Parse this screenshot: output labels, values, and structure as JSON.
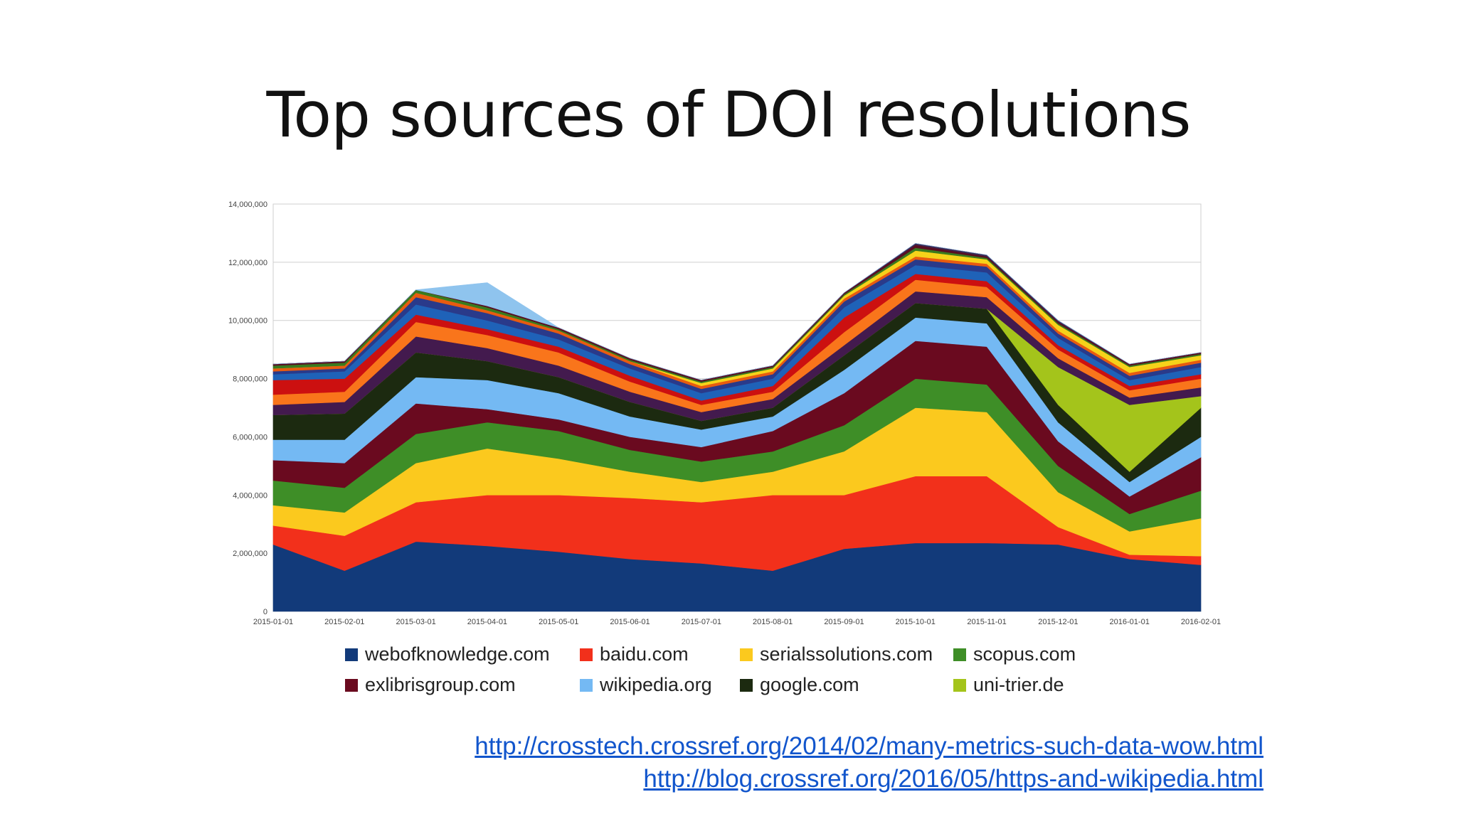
{
  "slide": {
    "title": "Top sources of DOI resolutions",
    "links": [
      "http://crosstech.crossref.org/2014/02/many-metrics-such-data-wow.html",
      "http://blog.crossref.org/2016/05/https-and-wikipedia.html"
    ]
  },
  "chart_data": {
    "type": "area",
    "stacked": true,
    "grid": true,
    "legend_position": "bottom",
    "ylim": [
      0,
      14000000
    ],
    "y_ticks": [
      "0",
      "2,000,000",
      "4,000,000",
      "6,000,000",
      "8,000,000",
      "10,000,000",
      "12,000,000",
      "14,000,000"
    ],
    "categories": [
      "2015-01-01",
      "2015-02-01",
      "2015-03-01",
      "2015-04-01",
      "2015-05-01",
      "2015-06-01",
      "2015-07-01",
      "2015-08-01",
      "2015-09-01",
      "2015-10-01",
      "2015-11-01",
      "2015-12-01",
      "2016-01-01",
      "2016-02-01"
    ],
    "series": [
      {
        "name": "webofknowledge.com",
        "color": "#123a7a",
        "legend": true,
        "values": [
          2300000,
          1400000,
          2400000,
          2250000,
          2050000,
          1800000,
          1650000,
          1400000,
          2150000,
          2350000,
          2350000,
          2300000,
          1800000,
          1600000
        ]
      },
      {
        "name": "baidu.com",
        "color": "#f2301b",
        "legend": true,
        "values": [
          650000,
          1200000,
          1350000,
          1750000,
          1950000,
          2100000,
          2100000,
          2600000,
          1850000,
          2300000,
          2300000,
          600000,
          150000,
          300000
        ]
      },
      {
        "name": "serialssolutions.com",
        "color": "#fbc91e",
        "legend": true,
        "values": [
          700000,
          800000,
          1350000,
          1600000,
          1250000,
          900000,
          700000,
          800000,
          1500000,
          2350000,
          2200000,
          1200000,
          800000,
          1300000
        ]
      },
      {
        "name": "scopus.com",
        "color": "#3e8e27",
        "legend": true,
        "values": [
          850000,
          850000,
          1000000,
          900000,
          950000,
          750000,
          700000,
          700000,
          900000,
          1000000,
          950000,
          900000,
          600000,
          950000
        ]
      },
      {
        "name": "exlibrisgroup.com",
        "color": "#6a0a1f",
        "legend": true,
        "values": [
          700000,
          850000,
          1050000,
          450000,
          400000,
          450000,
          500000,
          700000,
          1100000,
          1300000,
          1300000,
          850000,
          600000,
          1150000
        ]
      },
      {
        "name": "wikipedia.org",
        "color": "#74b9f3",
        "legend": true,
        "values": [
          700000,
          800000,
          900000,
          1000000,
          900000,
          700000,
          600000,
          500000,
          800000,
          800000,
          800000,
          650000,
          500000,
          700000
        ]
      },
      {
        "name": "google.com",
        "color": "#1c2a10",
        "legend": true,
        "values": [
          850000,
          900000,
          850000,
          650000,
          550000,
          500000,
          300000,
          300000,
          500000,
          500000,
          500000,
          600000,
          350000,
          1000000
        ]
      },
      {
        "name": "uni-trier.de",
        "color": "#a4c41b",
        "legend": true,
        "values": [
          0,
          0,
          0,
          0,
          0,
          0,
          0,
          0,
          0,
          0,
          0,
          1300000,
          2300000,
          400000
        ]
      },
      {
        "name": "",
        "color": "#431a4e",
        "legend": false,
        "values": [
          350000,
          400000,
          550000,
          450000,
          400000,
          350000,
          300000,
          300000,
          350000,
          400000,
          400000,
          300000,
          250000,
          300000
        ]
      },
      {
        "name": "",
        "color": "#f9751b",
        "legend": false,
        "values": [
          350000,
          350000,
          500000,
          450000,
          450000,
          350000,
          250000,
          250000,
          450000,
          400000,
          350000,
          300000,
          250000,
          300000
        ]
      },
      {
        "name": "",
        "color": "#cc1010",
        "legend": false,
        "values": [
          500000,
          450000,
          250000,
          200000,
          200000,
          200000,
          150000,
          200000,
          500000,
          200000,
          200000,
          150000,
          150000,
          150000
        ]
      },
      {
        "name": "",
        "color": "#1f62b8",
        "legend": false,
        "values": [
          200000,
          250000,
          350000,
          300000,
          250000,
          250000,
          250000,
          250000,
          350000,
          300000,
          300000,
          250000,
          200000,
          250000
        ]
      },
      {
        "name": "",
        "color": "#2a3a8a",
        "legend": false,
        "values": [
          100000,
          100000,
          250000,
          250000,
          200000,
          150000,
          150000,
          150000,
          200000,
          200000,
          200000,
          150000,
          150000,
          150000
        ]
      },
      {
        "name": "",
        "color": "#e85b10",
        "legend": false,
        "values": [
          100000,
          100000,
          150000,
          100000,
          100000,
          100000,
          100000,
          100000,
          100000,
          100000,
          100000,
          100000,
          100000,
          100000
        ]
      },
      {
        "name": "",
        "color": "#f6d21a",
        "legend": false,
        "values": [
          0,
          0,
          0,
          0,
          0,
          0,
          100000,
          100000,
          100000,
          200000,
          150000,
          200000,
          200000,
          150000
        ]
      },
      {
        "name": "",
        "color": "#3a7a1e",
        "legend": false,
        "values": [
          100000,
          100000,
          100000,
          100000,
          50000,
          50000,
          50000,
          50000,
          50000,
          100000,
          50000,
          50000,
          50000,
          50000
        ]
      },
      {
        "name": "",
        "color": "#5a0e22",
        "legend": false,
        "values": [
          50000,
          50000,
          0,
          50000,
          50000,
          50000,
          50000,
          50000,
          50000,
          100000,
          50000,
          50000,
          50000,
          50000
        ]
      },
      {
        "name": "",
        "color": "#3c2a55",
        "legend": false,
        "values": [
          0,
          0,
          0,
          0,
          0,
          0,
          0,
          0,
          0,
          50000,
          50000,
          50000,
          0,
          0
        ]
      },
      {
        "name": "",
        "color": "#8fc4ee",
        "legend": false,
        "values": [
          0,
          0,
          0,
          800000,
          0,
          0,
          0,
          0,
          0,
          0,
          0,
          0,
          0,
          0
        ]
      }
    ]
  }
}
